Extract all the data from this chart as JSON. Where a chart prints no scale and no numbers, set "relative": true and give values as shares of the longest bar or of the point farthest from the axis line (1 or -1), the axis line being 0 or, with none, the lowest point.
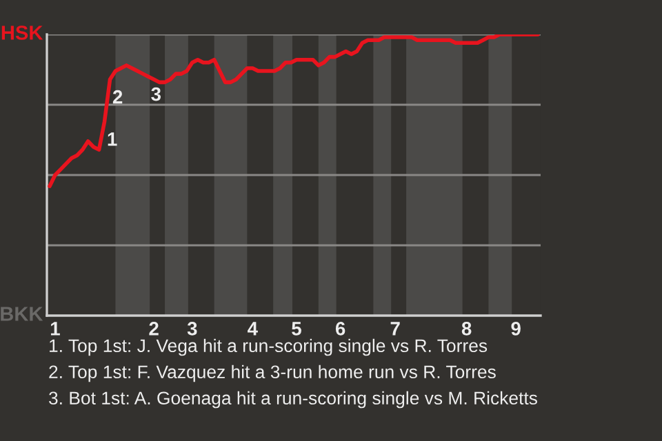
{
  "chart_data": {
    "type": "line",
    "relative": true,
    "categories": [
      null,
      "1",
      null,
      null,
      null,
      null,
      null,
      null,
      null,
      null,
      null,
      null,
      null,
      null,
      null,
      null,
      null,
      null,
      null,
      "2",
      null,
      null,
      null,
      null,
      null,
      null,
      "3",
      null,
      null,
      null,
      null,
      null,
      null,
      null,
      null,
      null,
      null,
      "4",
      null,
      null,
      null,
      null,
      null,
      null,
      null,
      "5",
      null,
      null,
      null,
      null,
      null,
      null,
      null,
      "6",
      null,
      null,
      null,
      null,
      null,
      null,
      null,
      null,
      null,
      "7",
      null,
      null,
      null,
      null,
      null,
      null,
      null,
      null,
      null,
      null,
      null,
      null,
      "8",
      null,
      null,
      null,
      null,
      null,
      null,
      null,
      null,
      "9",
      null,
      null,
      null,
      null
    ],
    "grid": "y",
    "marker": "none",
    "line_style": "solid",
    "series": [
      {
        "color": "#e8141e",
        "values": [
          0.46,
          0.5,
          0.52,
          0.54,
          0.56,
          0.57,
          0.59,
          0.62,
          0.6,
          0.59,
          0.69,
          0.84,
          0.87,
          0.88,
          0.89,
          0.88,
          0.87,
          0.86,
          0.85,
          0.84,
          0.83,
          0.83,
          0.84,
          0.86,
          0.86,
          0.87,
          0.9,
          0.91,
          0.9,
          0.9,
          0.91,
          0.87,
          0.83,
          0.83,
          0.84,
          0.86,
          0.88,
          0.88,
          0.87,
          0.87,
          0.87,
          0.87,
          0.88,
          0.9,
          0.9,
          0.91,
          0.91,
          0.91,
          0.91,
          0.89,
          0.9,
          0.92,
          0.92,
          0.93,
          0.94,
          0.93,
          0.94,
          0.97,
          0.98,
          0.98,
          0.98,
          0.99,
          0.99,
          0.99,
          0.99,
          0.99,
          0.99,
          0.98,
          0.98,
          0.98,
          0.98,
          0.98,
          0.98,
          0.98,
          0.97,
          0.97,
          0.97,
          0.97,
          0.97,
          0.98,
          0.99,
          0.99,
          1.0,
          1.0,
          1.0,
          1.0,
          1.0,
          1.0,
          1.0,
          1.0
        ]
      }
    ],
    "annotations": [
      {
        "text": "1",
        "y": 0.69
      },
      {
        "text": "2",
        "y": 0.84
      },
      {
        "text": "3",
        "y": 0.85
      },
      "HSK",
      "BKK",
      "1. Top 1st: J. Vega hit a run-scoring single vs R. Torres",
      "2. Top 1st: F. Vazquez hit a 3-run home run vs R. Torres",
      "3. Bot 1st: A. Goenaga hit a run-scoring single vs M. Ricketts"
    ]
  }
}
